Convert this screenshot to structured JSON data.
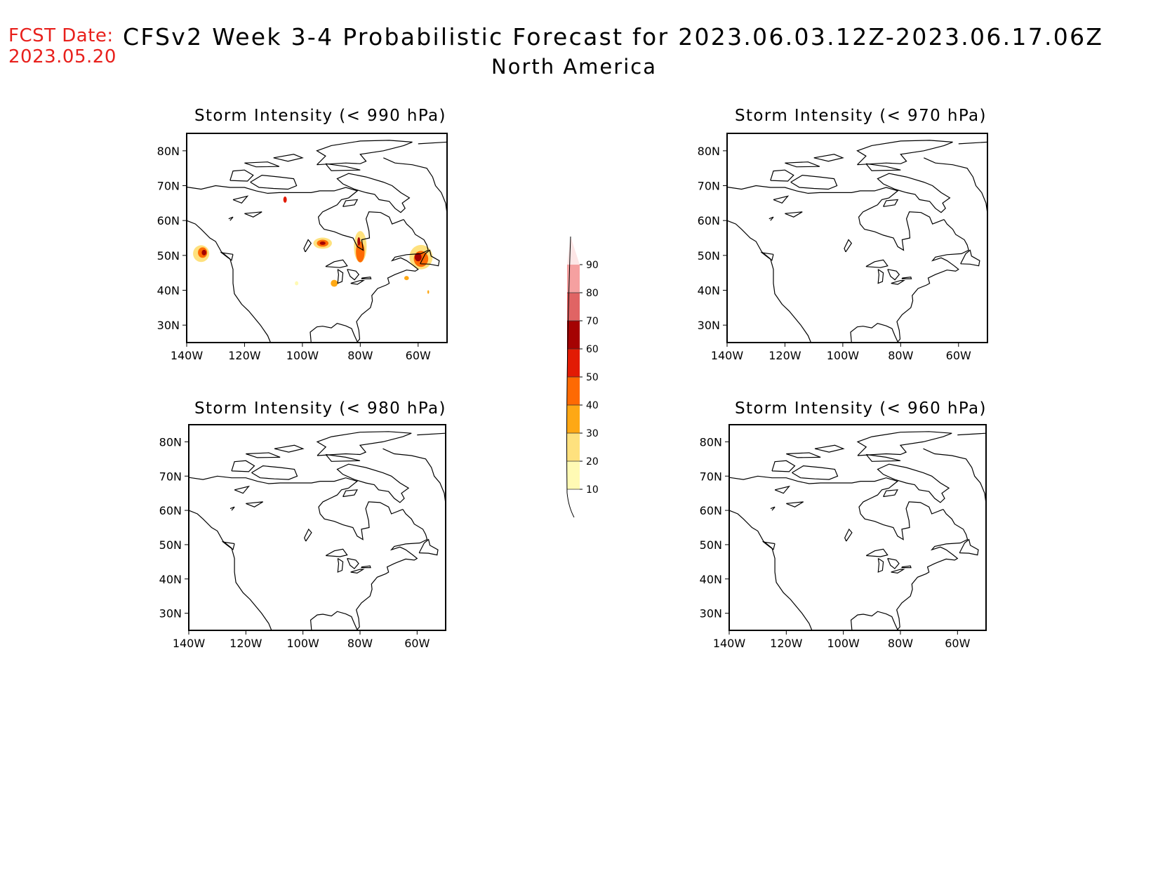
{
  "header": {
    "fcst_label": "FCST Date:",
    "fcst_date": "2023.05.20",
    "title": "CFSv2 Week 3-4 Probabilistic Forecast for 2023.06.03.12Z-2023.06.17.06Z",
    "region": "North America"
  },
  "panels": [
    {
      "title": "Storm Intensity (< 990 hPa)",
      "has_shading": true
    },
    {
      "title": "Storm Intensity (< 970 hPa)",
      "has_shading": false
    },
    {
      "title": "Storm Intensity (< 980 hPa)",
      "has_shading": false
    },
    {
      "title": "Storm Intensity (< 960 hPa)",
      "has_shading": false
    }
  ],
  "axes": {
    "lat_labels": [
      "80N",
      "70N",
      "60N",
      "50N",
      "40N",
      "30N"
    ],
    "lat_values": [
      80,
      70,
      60,
      50,
      40,
      30
    ],
    "lon_labels": [
      "140W",
      "120W",
      "100W",
      "80W",
      "60W"
    ],
    "lon_values": [
      -140,
      -120,
      -100,
      -80,
      -60
    ],
    "lat_range": [
      25,
      85
    ],
    "lon_range": [
      -140,
      -50
    ]
  },
  "colorbar": {
    "levels": [
      "10",
      "20",
      "30",
      "40",
      "50",
      "60",
      "70",
      "80",
      "90"
    ],
    "colors": [
      "#fffab4",
      "#fee17e",
      "#fea815",
      "#fe6a03",
      "#e21b04",
      "#a50202",
      "#e06464",
      "#f5a0a0",
      "#fde6e6"
    ]
  },
  "colors": {
    "fcst_text": "#e8201c",
    "coast": "#000000"
  }
}
